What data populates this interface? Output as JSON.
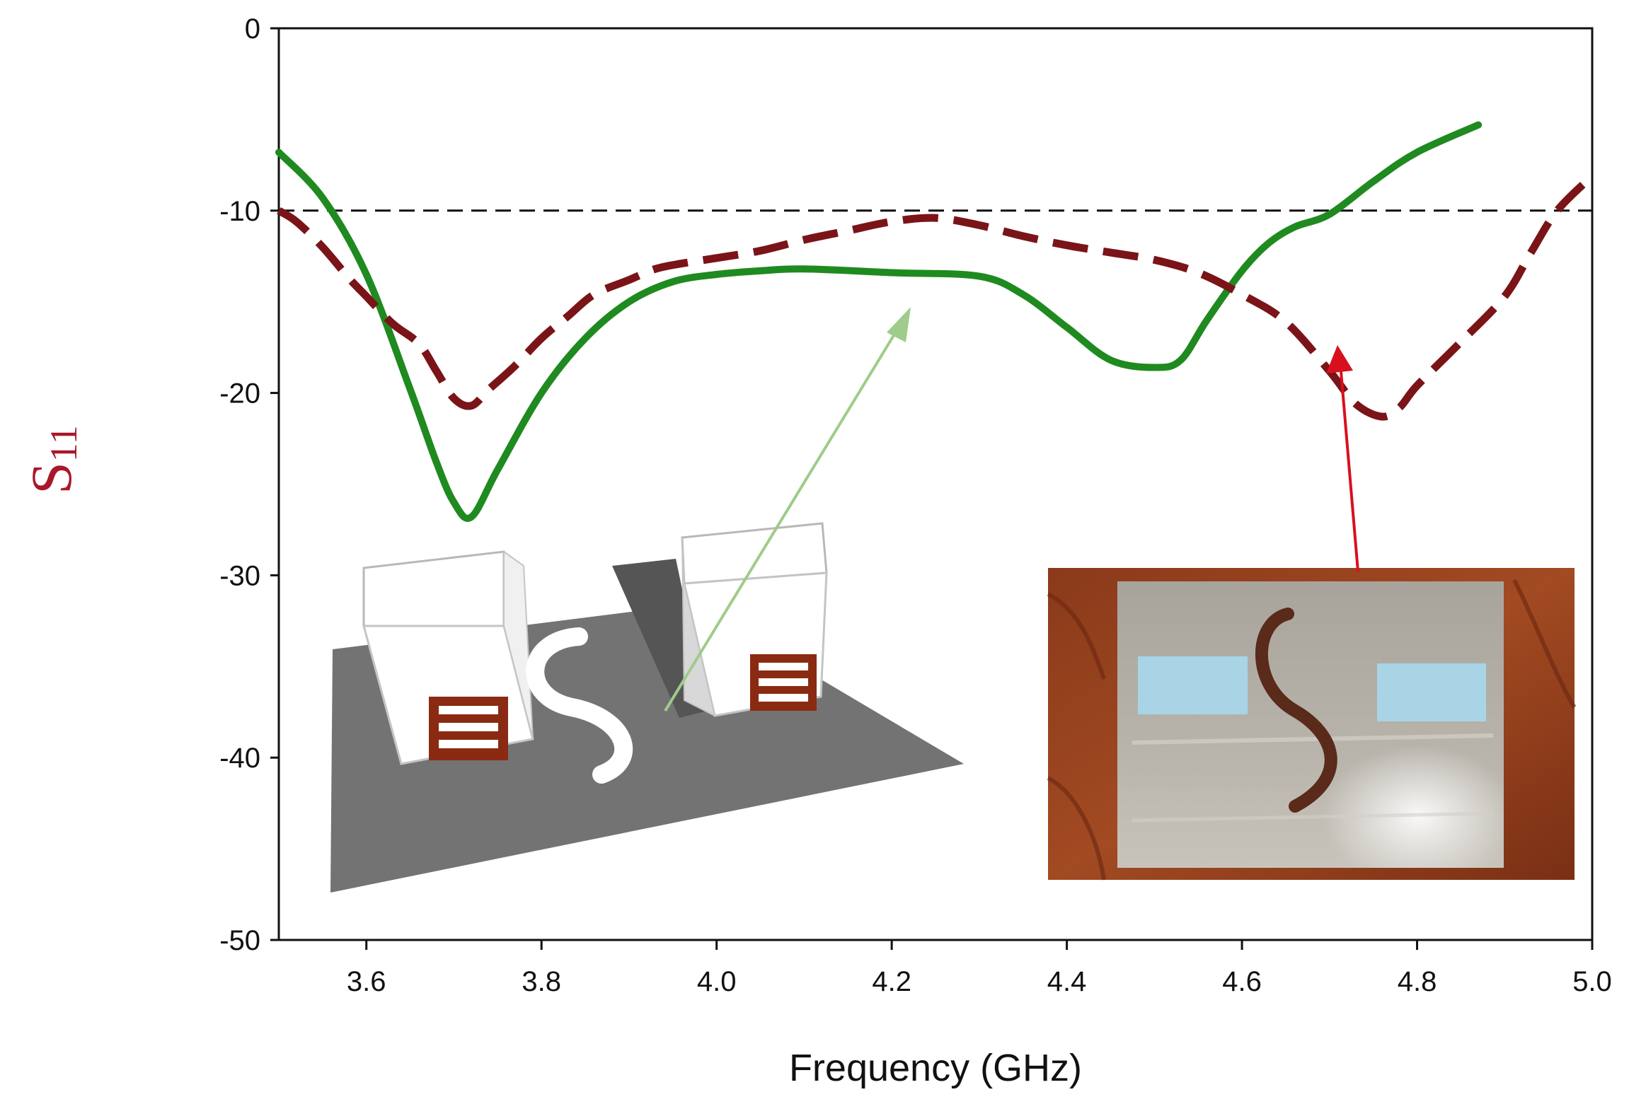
{
  "chart_data": {
    "type": "line",
    "title": "",
    "xlabel": "Frequency (GHz)",
    "ylabel": {
      "main": "S",
      "sub": "11"
    },
    "xlim": [
      3.5,
      5.0
    ],
    "ylim": [
      -50,
      0
    ],
    "xticks": [
      3.6,
      3.8,
      4.0,
      4.2,
      4.4,
      4.6,
      4.8,
      5.0
    ],
    "xtick_labels": [
      "3.6",
      "3.8",
      "4.0",
      "4.2",
      "4.4",
      "4.6",
      "4.8",
      "5.0"
    ],
    "yticks": [
      0,
      -10,
      -20,
      -30,
      -40,
      -50
    ],
    "ytick_labels": [
      "0",
      "-10",
      "-20",
      "-30",
      "-40",
      "-50"
    ],
    "grid": false,
    "reference_line": {
      "y": -10,
      "style": "dashed",
      "color": "#111111"
    },
    "series": [
      {
        "style": "solid",
        "color": "#1f8a1f",
        "x": [
          3.5,
          3.55,
          3.6,
          3.65,
          3.68,
          3.7,
          3.72,
          3.75,
          3.8,
          3.85,
          3.9,
          3.95,
          4.0,
          4.05,
          4.1,
          4.2,
          4.3,
          4.35,
          4.4,
          4.45,
          4.5,
          4.53,
          4.56,
          4.6,
          4.63,
          4.66,
          4.7,
          4.75,
          4.8,
          4.87
        ],
        "y": [
          -6.8,
          -9.3,
          -13.5,
          -19.8,
          -23.8,
          -26.0,
          -26.8,
          -24.2,
          -20.0,
          -17.0,
          -15.0,
          -13.9,
          -13.5,
          -13.3,
          -13.2,
          -13.4,
          -13.6,
          -14.6,
          -16.4,
          -18.2,
          -18.6,
          -18.2,
          -16.0,
          -13.3,
          -11.8,
          -10.9,
          -10.2,
          -8.4,
          -6.8,
          -5.3
        ]
      },
      {
        "style": "dashed",
        "color": "#7a1418",
        "x": [
          3.5,
          3.52,
          3.55,
          3.58,
          3.6,
          3.63,
          3.66,
          3.68,
          3.7,
          3.72,
          3.74,
          3.77,
          3.8,
          3.83,
          3.86,
          3.9,
          3.93,
          3.96,
          4.0,
          4.05,
          4.1,
          4.15,
          4.2,
          4.25,
          4.3,
          4.35,
          4.4,
          4.45,
          4.5,
          4.55,
          4.6,
          4.65,
          4.7,
          4.73,
          4.76,
          4.78,
          4.8,
          4.85,
          4.9,
          4.93,
          4.96,
          5.0
        ],
        "y": [
          -10.0,
          -10.6,
          -12.0,
          -13.7,
          -14.7,
          -16.2,
          -17.3,
          -18.8,
          -20.3,
          -20.7,
          -19.8,
          -18.5,
          -17.0,
          -15.8,
          -14.6,
          -13.8,
          -13.2,
          -12.9,
          -12.6,
          -12.2,
          -11.6,
          -11.1,
          -10.6,
          -10.4,
          -10.8,
          -11.4,
          -11.9,
          -12.3,
          -12.7,
          -13.4,
          -14.6,
          -16.1,
          -18.8,
          -20.6,
          -21.3,
          -20.8,
          -19.6,
          -17.2,
          -14.7,
          -12.3,
          -10.0,
          -8.1
        ]
      }
    ]
  },
  "insets": {
    "model_render": "3d-antenna-model",
    "photo": "fabricated-antenna-photo"
  }
}
